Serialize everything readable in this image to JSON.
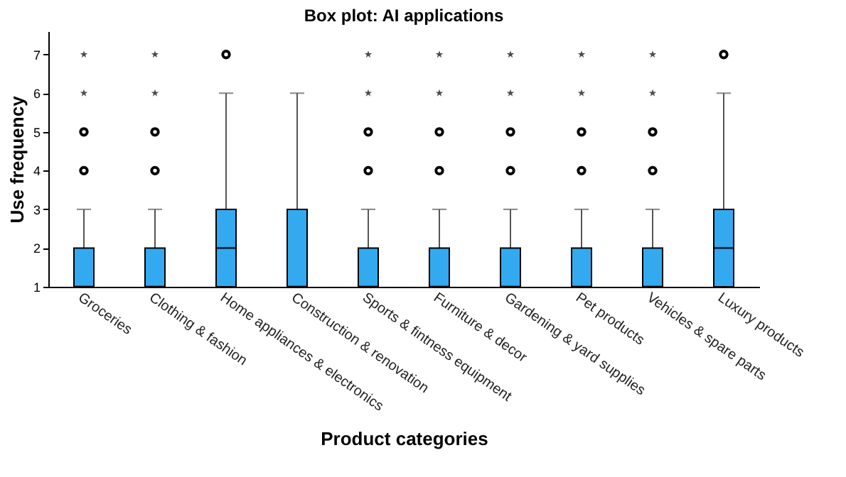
{
  "chart_data": {
    "type": "box",
    "title": "Box plot: AI applications",
    "xlabel": "Product categories",
    "ylabel": "Use frequency",
    "categories": [
      "Groceries",
      "Clothing & fashion",
      "Home appliances & electronics",
      "Construction & renovation",
      "Sports & fintness equipment",
      "Furniture & decor",
      "Gardening & yard supplies",
      "Pet products",
      "Vehicles & spare parts",
      "Luxury products"
    ],
    "ylim": [
      1,
      7.6
    ],
    "yticks": [
      1,
      2,
      3,
      4,
      5,
      6,
      7
    ],
    "boxes": [
      {
        "low": 1,
        "q1": 1,
        "median": 1,
        "q3": 2,
        "high": 3,
        "outliers": [
          4,
          5
        ]
      },
      {
        "low": 1,
        "q1": 1,
        "median": 1,
        "q3": 2,
        "high": 3,
        "outliers": [
          4,
          5
        ]
      },
      {
        "low": 1,
        "q1": 1,
        "median": 2,
        "q3": 3,
        "high": 6,
        "outliers": [
          7
        ]
      },
      {
        "low": 1,
        "q1": 1,
        "median": 1,
        "q3": 3,
        "high": 6
      },
      {
        "low": 1,
        "q1": 1,
        "median": 1,
        "q3": 2,
        "high": 3,
        "outliers": [
          4,
          5
        ]
      },
      {
        "low": 1,
        "q1": 1,
        "median": 1,
        "q3": 2,
        "high": 3,
        "outliers": [
          4,
          5
        ]
      },
      {
        "low": 1,
        "q1": 1,
        "median": 1,
        "q3": 2,
        "high": 3,
        "outliers": [
          4,
          5
        ]
      },
      {
        "low": 1,
        "q1": 1,
        "median": 1,
        "q3": 2,
        "high": 3,
        "outliers": [
          4,
          5
        ]
      },
      {
        "low": 1,
        "q1": 1,
        "median": 1,
        "q3": 2,
        "high": 3,
        "outliers": [
          4,
          5
        ]
      },
      {
        "low": 1,
        "q1": 1,
        "median": 2,
        "q3": 3,
        "high": 6,
        "outliers": [
          7
        ]
      }
    ],
    "color": "#33aaf0",
    "series": [
      {
        "type": "scatter",
        "marker": "star",
        "color": "#000000",
        "x": [
          "Groceries",
          "Groceries",
          "Clothing & fashion",
          "Clothing & fashion",
          "Sports & fintness equipment",
          "Sports & fintness equipment",
          "Furniture & decor",
          "Furniture & decor",
          "Gardening & yard supplies",
          "Gardening & yard supplies",
          "Pet products",
          "Pet products",
          "Vehicles & spare parts",
          "Vehicles & spare parts"
        ],
        "values": [
          6,
          7,
          6,
          7,
          6,
          7,
          6,
          7,
          6,
          7,
          6,
          7,
          6,
          7
        ]
      }
    ]
  }
}
